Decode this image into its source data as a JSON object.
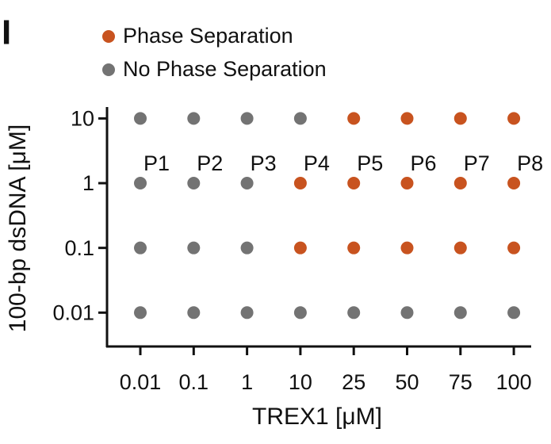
{
  "panel_label": "I",
  "chart_data": {
    "type": "scatter",
    "x_label": "TREX1 [μM]",
    "y_label": "100-bp dsDNA [μM]",
    "categories": [
      "0.01",
      "0.1",
      "1",
      "10",
      "25",
      "50",
      "75",
      "100"
    ],
    "ylim": [
      0.003,
      15
    ],
    "yticks": [
      0.01,
      0.1,
      1,
      10
    ],
    "y_log": true,
    "annotations": [
      "P1",
      "P2",
      "P3",
      "P4",
      "P5",
      "P6",
      "P7",
      "P8"
    ],
    "series": [
      {
        "name": "Phase Separation",
        "color": "#c8531f",
        "x": [
          "10",
          "10",
          "25",
          "25",
          "25",
          "50",
          "50",
          "50",
          "75",
          "75",
          "75",
          "100",
          "100",
          "100"
        ],
        "values": [
          1,
          0.1,
          10,
          1,
          0.1,
          10,
          1,
          0.1,
          10,
          1,
          0.1,
          10,
          1,
          0.1
        ]
      },
      {
        "name": "No Phase Separation",
        "color": "#737373",
        "x": [
          "0.01",
          "0.01",
          "0.01",
          "0.01",
          "0.1",
          "0.1",
          "0.1",
          "0.1",
          "1",
          "1",
          "1",
          "1",
          "10",
          "10",
          "25",
          "50",
          "75",
          "100"
        ],
        "values": [
          10,
          1,
          0.1,
          0.01,
          10,
          1,
          0.1,
          0.01,
          10,
          1,
          0.1,
          0.01,
          10,
          0.01,
          0.01,
          0.01,
          0.01,
          0.01
        ]
      }
    ]
  }
}
